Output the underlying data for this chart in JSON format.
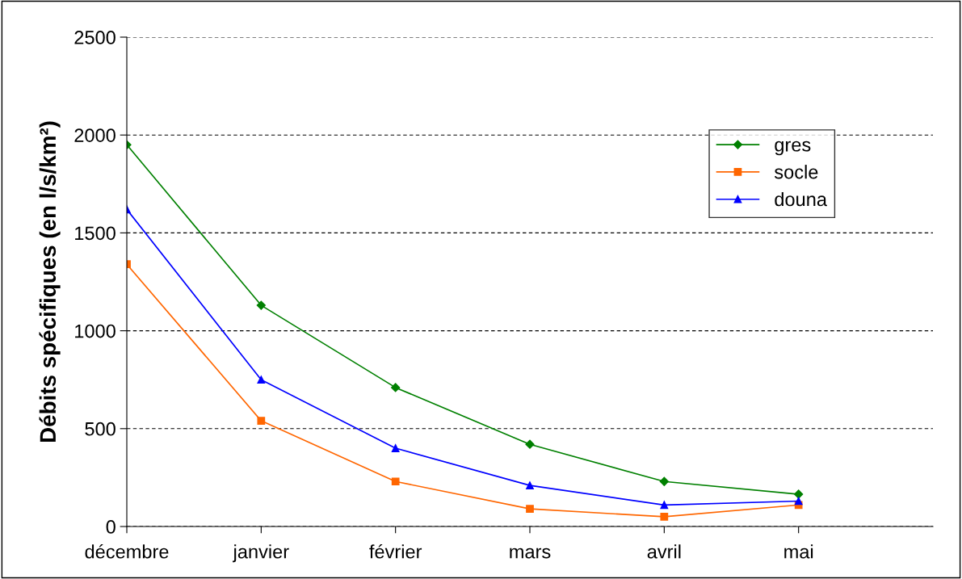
{
  "chart_data": {
    "type": "line",
    "ylabel": "Débits spécifiques (en l/s/km²)",
    "categories": [
      "décembre",
      "janvier",
      "février",
      "mars",
      "avril",
      "mai"
    ],
    "ylim": [
      0,
      2500
    ],
    "yticks": [
      0,
      500,
      1000,
      1500,
      2000,
      2500
    ],
    "grid": "y",
    "legend": "top right",
    "series": [
      {
        "name": "gres",
        "color": "#008000",
        "marker": "diamond",
        "values": [
          1950,
          1130,
          710,
          420,
          230,
          165
        ]
      },
      {
        "name": "socle",
        "color": "#ff6600",
        "marker": "square",
        "values": [
          1340,
          540,
          230,
          90,
          50,
          110
        ]
      },
      {
        "name": "douna",
        "color": "#0000ff",
        "marker": "triangle",
        "values": [
          1620,
          750,
          400,
          210,
          110,
          130
        ]
      }
    ]
  }
}
